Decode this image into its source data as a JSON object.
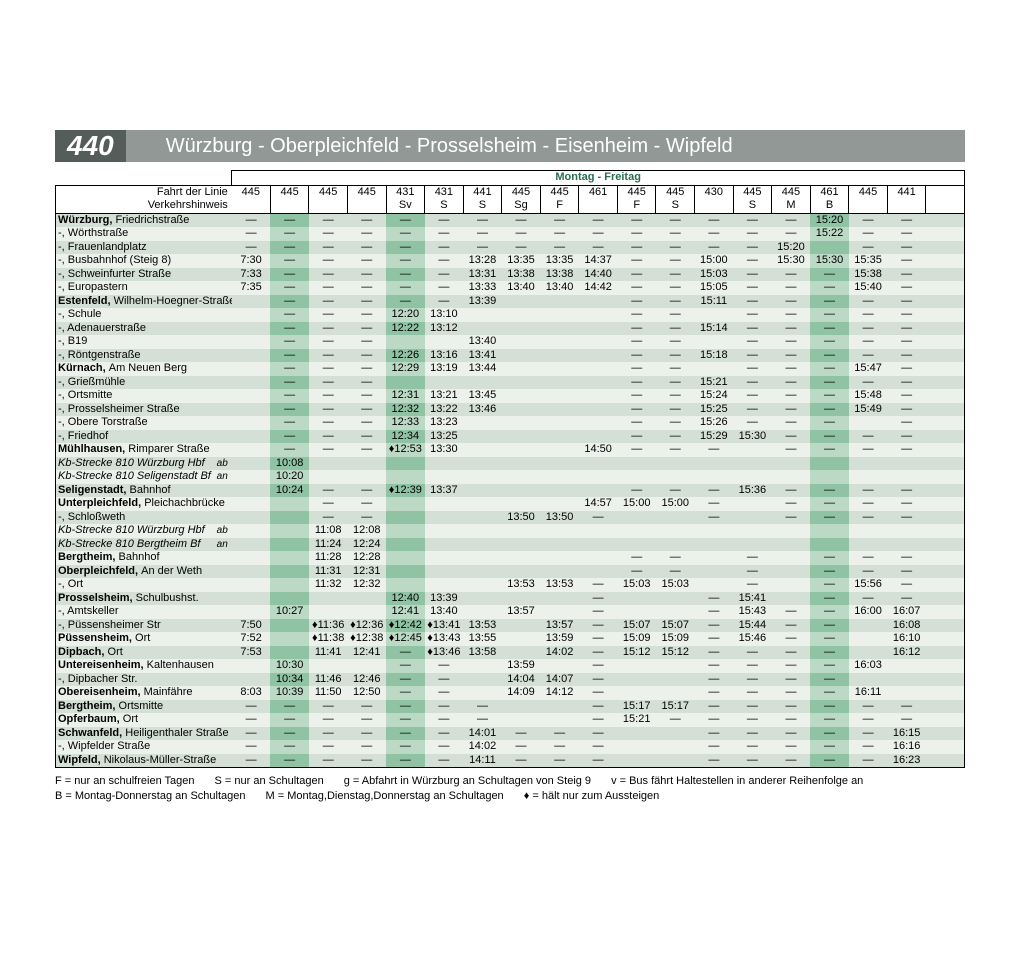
{
  "header": {
    "line_number": "440",
    "route": "Würzburg - Oberpleichfeld - Prosselsheim - Eisenheim - Wipfeld"
  },
  "colors": {
    "header_dark": "#555d5b",
    "header_light": "#919895",
    "group_a_even": "#d4dfd6",
    "group_a_odd": "#ecf1ec",
    "group_b_even": "#8fc3a4",
    "group_b_odd": "#bcd9c5",
    "days_text": "#2a6e4e"
  },
  "days_header": "Montag - Freitag",
  "hdr_labels": {
    "fahrt": "Fahrt der Linie",
    "verkehr": "Verkehrshinweis"
  },
  "trips": [
    "445",
    "445",
    "445",
    "445",
    "431",
    "431",
    "441",
    "445",
    "445",
    "461",
    "445",
    "445",
    "430",
    "445",
    "445",
    "461",
    "445",
    "441",
    ""
  ],
  "hints": [
    "",
    "",
    "",
    "",
    "Sv",
    "S",
    "S",
    "Sg",
    "F",
    "",
    "F",
    "S",
    "",
    "S",
    "M",
    "B",
    "",
    "",
    ""
  ],
  "stops": [
    {
      "label": "Würzburg, Friedrichstraße",
      "bold": true,
      "sub": "Friedrichstraße",
      "g": 0,
      "row": 0,
      "times": [
        "—",
        "—",
        "—",
        "—",
        "—",
        "—",
        "—",
        "—",
        "—",
        "—",
        "—",
        "—",
        "—",
        "—",
        "—",
        "15:20",
        "—",
        "—",
        ""
      ]
    },
    {
      "label": "-, Wörthstraße",
      "g": 1,
      "row": 1,
      "times": [
        "—",
        "—",
        "—",
        "—",
        "—",
        "—",
        "—",
        "—",
        "—",
        "—",
        "—",
        "—",
        "—",
        "—",
        "—",
        "15:22",
        "—",
        "—",
        ""
      ]
    },
    {
      "label": "-, Frauenlandplatz",
      "g": 0,
      "row": 2,
      "times": [
        "—",
        "—",
        "—",
        "—",
        "—",
        "—",
        "—",
        "—",
        "—",
        "—",
        "—",
        "—",
        "—",
        "—",
        "15:20",
        "",
        "—",
        "—",
        ""
      ]
    },
    {
      "label": "-, Busbahnhof (Steig 8)",
      "g": 1,
      "row": 3,
      "times": [
        "7:30",
        "—",
        "—",
        "—",
        "—",
        "—",
        "13:28",
        "13:35",
        "13:35",
        "14:37",
        "—",
        "—",
        "15:00",
        "—",
        "15:30",
        "15:30",
        "15:35",
        "—",
        ""
      ]
    },
    {
      "label": "-, Schweinfurter Straße",
      "g": 0,
      "row": 4,
      "times": [
        "7:33",
        "—",
        "—",
        "—",
        "—",
        "—",
        "13:31",
        "13:38",
        "13:38",
        "14:40",
        "—",
        "—",
        "15:03",
        "—",
        "—",
        "—",
        "15:38",
        "—",
        ""
      ]
    },
    {
      "label": "-, Europastern",
      "g": 1,
      "row": 5,
      "times": [
        "7:35",
        "—",
        "—",
        "—",
        "—",
        "—",
        "13:33",
        "13:40",
        "13:40",
        "14:42",
        "—",
        "—",
        "15:05",
        "—",
        "—",
        "—",
        "15:40",
        "—",
        ""
      ]
    },
    {
      "label": "Estenfeld, Wilhelm-Hoegner-Straße",
      "bold": true,
      "sub": "Wilhelm-Hoegner-Straße",
      "g": 0,
      "row": 6,
      "times": [
        "",
        "—",
        "—",
        "—",
        "—",
        "—",
        "13:39",
        "",
        "",
        "",
        "—",
        "—",
        "15:11",
        "—",
        "—",
        "—",
        "—",
        "—",
        ""
      ]
    },
    {
      "label": "-, Schule",
      "g": 1,
      "row": 7,
      "times": [
        "",
        "—",
        "—",
        "—",
        "12:20",
        "13:10",
        "",
        "",
        "",
        "",
        "—",
        "—",
        "",
        "—",
        "—",
        "—",
        "—",
        "—",
        ""
      ]
    },
    {
      "label": "-, Adenauerstraße",
      "g": 0,
      "row": 8,
      "times": [
        "",
        "—",
        "—",
        "—",
        "12:22",
        "13:12",
        "",
        "",
        "",
        "",
        "—",
        "—",
        "15:14",
        "—",
        "—",
        "—",
        "—",
        "—",
        ""
      ]
    },
    {
      "label": "-, B19",
      "g": 1,
      "row": 9,
      "times": [
        "",
        "—",
        "—",
        "—",
        "",
        "",
        "13:40",
        "",
        "",
        "",
        "—",
        "—",
        "",
        "—",
        "—",
        "—",
        "—",
        "—",
        ""
      ]
    },
    {
      "label": "-, Röntgenstraße",
      "g": 0,
      "row": 10,
      "times": [
        "",
        "—",
        "—",
        "—",
        "12:26",
        "13:16",
        "13:41",
        "",
        "",
        "",
        "—",
        "—",
        "15:18",
        "—",
        "—",
        "—",
        "—",
        "—",
        ""
      ]
    },
    {
      "label": "Kürnach, Am Neuen Berg",
      "bold": true,
      "sub": "Am Neuen Berg",
      "g": 1,
      "row": 11,
      "times": [
        "",
        "—",
        "—",
        "—",
        "12:29",
        "13:19",
        "13:44",
        "",
        "",
        "",
        "—",
        "—",
        "",
        "—",
        "—",
        "—",
        "15:47",
        "—",
        ""
      ]
    },
    {
      "label": "-, Grießmühle",
      "g": 0,
      "row": 12,
      "times": [
        "",
        "—",
        "—",
        "—",
        "",
        "",
        "",
        "",
        "",
        "",
        "—",
        "—",
        "15:21",
        "—",
        "—",
        "—",
        "—",
        "—",
        ""
      ]
    },
    {
      "label": "-, Ortsmitte",
      "g": 1,
      "row": 13,
      "times": [
        "",
        "—",
        "—",
        "—",
        "12:31",
        "13:21",
        "13:45",
        "",
        "",
        "",
        "—",
        "—",
        "15:24",
        "—",
        "—",
        "—",
        "15:48",
        "—",
        ""
      ]
    },
    {
      "label": "-, Prosselsheimer Straße",
      "g": 0,
      "row": 14,
      "times": [
        "",
        "—",
        "—",
        "—",
        "12:32",
        "13:22",
        "13:46",
        "",
        "",
        "",
        "—",
        "—",
        "15:25",
        "—",
        "—",
        "—",
        "15:49",
        "—",
        ""
      ]
    },
    {
      "label": "-, Obere Torstraße",
      "g": 1,
      "row": 15,
      "times": [
        "",
        "—",
        "—",
        "—",
        "12:33",
        "13:23",
        "",
        "",
        "",
        "",
        "—",
        "—",
        "15:26",
        "—",
        "—",
        "—",
        "",
        "—",
        ""
      ]
    },
    {
      "label": "-, Friedhof",
      "g": 0,
      "row": 16,
      "times": [
        "",
        "—",
        "—",
        "—",
        "12:34",
        "13:25",
        "",
        "",
        "",
        "",
        "—",
        "—",
        "15:29",
        "15:30",
        "—",
        "—",
        "—",
        "—",
        ""
      ]
    },
    {
      "label": "Mühlhausen, Rimparer Straße",
      "bold": true,
      "sub": "Rimparer Straße",
      "g": 1,
      "row": 17,
      "times": [
        "",
        "—",
        "—",
        "—",
        "♦12:53",
        "13:30",
        "",
        "",
        "",
        "14:50",
        "—",
        "—",
        "—",
        "",
        "—",
        "—",
        "—",
        "—",
        ""
      ]
    },
    {
      "label": "Kb-Strecke 810 Würzburg  Hbf",
      "italic": true,
      "suffix": "ab",
      "g": 0,
      "row": 18,
      "times": [
        "",
        "10:08",
        "",
        "",
        "",
        "",
        "",
        "",
        "",
        "",
        "",
        "",
        "",
        "",
        "",
        "",
        "",
        "",
        ""
      ]
    },
    {
      "label": "Kb-Strecke 810 Seligenstadt Bf",
      "italic": true,
      "suffix": "an",
      "g": 0,
      "row": 19,
      "times": [
        "",
        "10:20",
        "",
        "",
        "",
        "",
        "",
        "",
        "",
        "",
        "",
        "",
        "",
        "",
        "",
        "",
        "",
        "",
        ""
      ]
    },
    {
      "label": "Seligenstadt, Bahnhof",
      "bold": true,
      "sub": "Bahnhof",
      "g": 0,
      "row": 20,
      "times": [
        "",
        "10:24",
        "—",
        "—",
        "♦12:39",
        "13:37",
        "",
        "",
        "",
        "",
        "—",
        "—",
        "—",
        "15:36",
        "—",
        "—",
        "—",
        "—",
        ""
      ]
    },
    {
      "label": "Unterpleichfeld, Pleichachbrücke",
      "bold": true,
      "sub": "Pleichachbrücke",
      "g": 1,
      "row": 21,
      "times": [
        "",
        "",
        "—",
        "—",
        "",
        "",
        "",
        "",
        "",
        "14:57",
        "15:00",
        "15:00",
        "—",
        "",
        "—",
        "—",
        "—",
        "—",
        ""
      ]
    },
    {
      "label": "-, Schloßweth",
      "g": 0,
      "row": 22,
      "times": [
        "",
        "",
        "—",
        "—",
        "",
        "",
        "",
        "13:50",
        "13:50",
        "—",
        "",
        "",
        "—",
        "",
        "—",
        "—",
        "—",
        "—",
        ""
      ]
    },
    {
      "label": "Kb-Strecke 810 Würzburg Hbf",
      "italic": true,
      "suffix": "ab",
      "g": 0,
      "row": 23,
      "times": [
        "",
        "",
        "11:08",
        "12:08",
        "",
        "",
        "",
        "",
        "",
        "",
        "",
        "",
        "",
        "",
        "",
        "",
        "",
        "",
        ""
      ]
    },
    {
      "label": "Kb-Strecke 810 Bergtheim Bf",
      "italic": true,
      "suffix": "an",
      "g": 0,
      "row": 24,
      "times": [
        "",
        "",
        "11:24",
        "12:24",
        "",
        "",
        "",
        "",
        "",
        "",
        "",
        "",
        "",
        "",
        "",
        "",
        "",
        "",
        ""
      ]
    },
    {
      "label": "Bergtheim, Bahnhof",
      "bold": true,
      "sub": "Bahnhof",
      "g": 1,
      "row": 25,
      "times": [
        "",
        "",
        "11:28",
        "12:28",
        "",
        "",
        "",
        "",
        "",
        "",
        "—",
        "—",
        "",
        "—",
        "",
        "—",
        "—",
        "—",
        ""
      ]
    },
    {
      "label": "Oberpleichfeld, An der Weth",
      "bold": true,
      "sub": "An der Weth",
      "g": 0,
      "row": 26,
      "times": [
        "",
        "",
        "11:31",
        "12:31",
        "",
        "",
        "",
        "",
        "",
        "",
        "—",
        "—",
        "",
        "—",
        "",
        "—",
        "—",
        "—",
        ""
      ]
    },
    {
      "label": "-, Ort",
      "g": 1,
      "row": 27,
      "times": [
        "",
        "",
        "11:32",
        "12:32",
        "",
        "",
        "",
        "13:53",
        "13:53",
        "—",
        "15:03",
        "15:03",
        "",
        "—",
        "",
        "—",
        "15:56",
        "—",
        ""
      ]
    },
    {
      "label": "Prosselsheim, Schulbushst.",
      "bold": true,
      "sub": "Schulbushst.",
      "g": 0,
      "row": 28,
      "times": [
        "",
        "",
        "",
        "",
        "12:40",
        "13:39",
        "",
        "",
        "",
        "—",
        "",
        "",
        "—",
        "15:41",
        "",
        "—",
        "—",
        "—",
        ""
      ]
    },
    {
      "label": "-, Amtskeller",
      "g": 1,
      "row": 29,
      "times": [
        "",
        "10:27",
        "",
        "",
        "12:41",
        "13:40",
        "",
        "13:57",
        "",
        "—",
        "",
        "",
        "—",
        "15:43",
        "—",
        "—",
        "16:00",
        "16:07",
        ""
      ]
    },
    {
      "label": "-, Püssensheimer Str",
      "g": 0,
      "row": 30,
      "times": [
        "7:50",
        "",
        "♦11:36",
        "♦12:36",
        "♦12:42",
        "♦13:41",
        "13:53",
        "",
        "13:57",
        "—",
        "15:07",
        "15:07",
        "—",
        "15:44",
        "—",
        "—",
        "",
        "16:08",
        ""
      ]
    },
    {
      "label": "Püssensheim, Ort",
      "bold": true,
      "sub": "Ort",
      "g": 1,
      "row": 31,
      "times": [
        "7:52",
        "",
        "♦11:38",
        "♦12:38",
        "♦12:45",
        "♦13:43",
        "13:55",
        "",
        "13:59",
        "—",
        "15:09",
        "15:09",
        "—",
        "15:46",
        "—",
        "—",
        "",
        "16:10",
        ""
      ]
    },
    {
      "label": "Dipbach, Ort",
      "bold": true,
      "sub": "Ort",
      "g": 0,
      "row": 32,
      "times": [
        "7:53",
        "",
        "11:41",
        "12:41",
        "—",
        "♦13:46",
        "13:58",
        "",
        "14:02",
        "—",
        "15:12",
        "15:12",
        "—",
        "—",
        "—",
        "—",
        "",
        "16:12",
        ""
      ]
    },
    {
      "label": "Untereisenheim, Kaltenhausen",
      "bold": true,
      "sub": "Kaltenhausen",
      "g": 1,
      "row": 33,
      "times": [
        "",
        "10:30",
        "",
        "",
        "—",
        "—",
        "",
        "13:59",
        "",
        "—",
        "",
        "",
        "—",
        "—",
        "—",
        "—",
        "16:03",
        "",
        ""
      ]
    },
    {
      "label": "-, Dipbacher Str.",
      "g": 0,
      "row": 34,
      "times": [
        "",
        "10:34",
        "11:46",
        "12:46",
        "—",
        "—",
        "",
        "14:04",
        "14:07",
        "—",
        "",
        "",
        "—",
        "—",
        "—",
        "—",
        "",
        "",
        ""
      ]
    },
    {
      "label": "Obereisenheim, Mainfähre",
      "bold": true,
      "sub": "Mainfähre",
      "g": 1,
      "row": 35,
      "times": [
        "8:03",
        "10:39",
        "11:50",
        "12:50",
        "—",
        "—",
        "",
        "14:09",
        "14:12",
        "—",
        "",
        "",
        "—",
        "—",
        "—",
        "—",
        "16:11",
        "",
        ""
      ]
    },
    {
      "label": "Bergtheim, Ortsmitte",
      "bold": true,
      "sub": "Ortsmitte",
      "g": 0,
      "row": 36,
      "times": [
        "—",
        "—",
        "—",
        "—",
        "—",
        "—",
        "—",
        "",
        "",
        "—",
        "15:17",
        "15:17",
        "—",
        "—",
        "—",
        "—",
        "—",
        "—",
        ""
      ]
    },
    {
      "label": "Opferbaum, Ort",
      "bold": true,
      "sub": "Ort",
      "g": 1,
      "row": 37,
      "times": [
        "—",
        "—",
        "—",
        "—",
        "—",
        "—",
        "—",
        "",
        "",
        "—",
        "15:21",
        "—",
        "—",
        "—",
        "—",
        "—",
        "—",
        "—",
        ""
      ]
    },
    {
      "label": "Schwanfeld, Heiligenthaler Straße",
      "bold": true,
      "sub": "Heiligenthaler Straße",
      "g": 0,
      "row": 38,
      "times": [
        "—",
        "—",
        "—",
        "—",
        "—",
        "—",
        "14:01",
        "—",
        "—",
        "—",
        "",
        "",
        "—",
        "—",
        "—",
        "—",
        "—",
        "16:15",
        ""
      ]
    },
    {
      "label": "-, Wipfelder Straße",
      "g": 1,
      "row": 39,
      "times": [
        "—",
        "—",
        "—",
        "—",
        "—",
        "—",
        "14:02",
        "—",
        "—",
        "—",
        "",
        "",
        "—",
        "—",
        "—",
        "—",
        "—",
        "16:16",
        ""
      ]
    },
    {
      "label": "Wipfeld, Nikolaus-Müller-Straße",
      "bold": true,
      "sub": "Nikolaus-Müller-Straße",
      "g": 0,
      "row": 40,
      "times": [
        "—",
        "—",
        "—",
        "—",
        "—",
        "—",
        "14:11",
        "—",
        "—",
        "—",
        "",
        "",
        "—",
        "—",
        "—",
        "—",
        "—",
        "16:23",
        ""
      ]
    }
  ],
  "columns_b": [
    1,
    4,
    15
  ],
  "legend": [
    "F = nur an schulfreien Tagen",
    "S = nur an Schultagen",
    "g = Abfahrt in Würzburg an Schultagen von Steig 9",
    "v = Bus fährt Haltestellen in anderer Reihenfolge an",
    "B = Montag-Donnerstag an Schultagen",
    "M = Montag,Dienstag,Donnerstag an Schultagen",
    "♦ = hält nur zum Aussteigen"
  ]
}
